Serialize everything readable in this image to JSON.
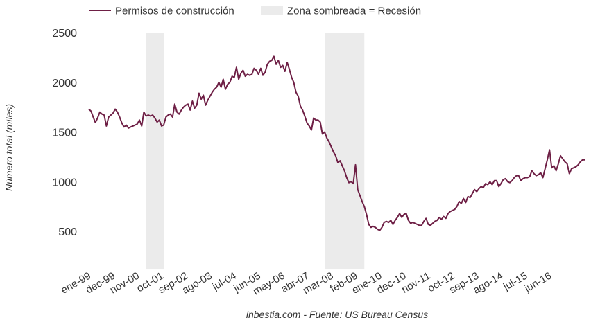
{
  "chart_data": {
    "type": "line",
    "title": "",
    "xlabel": "",
    "ylabel": "Número total (miles)",
    "ylim": [
      200,
      2500
    ],
    "y_ticks": [
      500,
      1000,
      1500,
      2000,
      2500
    ],
    "x_ticks": [
      "ene-99",
      "dec-99",
      "nov-00",
      "oct-01",
      "sep-02",
      "ago-03",
      "jul-04",
      "jun-05",
      "may-06",
      "abr-07",
      "mar-08",
      "feb-09",
      "ene-10",
      "dec-10",
      "nov-11",
      "oct-12",
      "sep-13",
      "ago-14",
      "jul-15",
      "jun-16"
    ],
    "legend": {
      "position": "top-left",
      "entries": [
        {
          "label": "Permisos de construcción",
          "color": "#6e1f45",
          "kind": "line"
        },
        {
          "label": "Zona sombreada = Recesión",
          "color": "#ebebeb",
          "kind": "area"
        }
      ]
    },
    "grid": false,
    "recessions": [
      {
        "start": "mar-01",
        "end": "nov-01"
      },
      {
        "start": "dic-07",
        "end": "jun-09"
      }
    ],
    "series": [
      {
        "name": "Permisos de construcción",
        "color": "#6e1f45",
        "x_start": "ene-99",
        "values": [
          1730,
          1710,
          1650,
          1595,
          1640,
          1700,
          1680,
          1670,
          1560,
          1650,
          1670,
          1690,
          1730,
          1700,
          1650,
          1590,
          1550,
          1570,
          1540,
          1550,
          1560,
          1570,
          1580,
          1620,
          1560,
          1700,
          1660,
          1670,
          1660,
          1670,
          1640,
          1600,
          1620,
          1560,
          1570,
          1650,
          1670,
          1680,
          1650,
          1780,
          1700,
          1680,
          1720,
          1750,
          1770,
          1780,
          1720,
          1810,
          1740,
          1770,
          1890,
          1830,
          1870,
          1770,
          1820,
          1860,
          1900,
          1930,
          1950,
          2000,
          1950,
          2030,
          1930,
          1980,
          2000,
          2060,
          2050,
          2150,
          2030,
          2090,
          2120,
          2060,
          2080,
          2070,
          2080,
          2140,
          2120,
          2080,
          2140,
          2070,
          2100,
          2180,
          2210,
          2220,
          2260,
          2180,
          2220,
          2150,
          2170,
          2110,
          2200,
          2130,
          2050,
          2000,
          1900,
          1860,
          1760,
          1720,
          1660,
          1590,
          1560,
          1520,
          1640,
          1620,
          1620,
          1600,
          1480,
          1500,
          1440,
          1400,
          1350,
          1300,
          1260,
          1190,
          1210,
          1160,
          1110,
          1040,
          990,
          1000,
          980,
          1170,
          920,
          860,
          800,
          750,
          670,
          570,
          540,
          550,
          540,
          520,
          510,
          540,
          590,
          600,
          590,
          610,
          570,
          610,
          640,
          680,
          640,
          670,
          680,
          610,
          580,
          590,
          580,
          570,
          560,
          560,
          600,
          630,
          570,
          560,
          580,
          600,
          610,
          640,
          620,
          650,
          630,
          680,
          700,
          710,
          720,
          750,
          800,
          780,
          830,
          790,
          850,
          840,
          880,
          920,
          900,
          930,
          950,
          940,
          980,
          970,
          1000,
          970,
          1010,
          1010,
          950,
          980,
          1020,
          1030,
          1000,
          990,
          1010,
          1040,
          1060,
          1060,
          1010,
          1030,
          1040,
          1040,
          1050,
          1110,
          1080,
          1060,
          1070,
          1090,
          1040,
          1130,
          1220,
          1320,
          1140,
          1160,
          1110,
          1180,
          1260,
          1230,
          1200,
          1180,
          1080,
          1130,
          1140,
          1150,
          1170,
          1200,
          1220,
          1220
        ]
      }
    ]
  },
  "source_note": "inbestia.com - Fuente: US Bureau Census"
}
